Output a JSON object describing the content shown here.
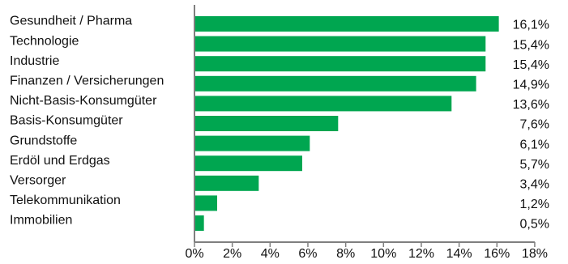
{
  "chart_data": {
    "type": "bar",
    "orientation": "horizontal",
    "categories": [
      "Gesundheit / Pharma",
      "Technologie",
      "Industrie",
      "Finanzen / Versicherungen",
      "Nicht-Basis-Konsumgüter",
      "Basis-Konsumgüter",
      "Grundstoffe",
      "Erdöl und Erdgas",
      "Versorger",
      "Telekommunikation",
      "Immobilien"
    ],
    "values": [
      16.1,
      15.4,
      15.4,
      14.9,
      13.6,
      7.6,
      6.1,
      5.7,
      3.4,
      1.2,
      0.5
    ],
    "value_labels": [
      "16,1%",
      "15,4%",
      "15,4%",
      "14,9%",
      "13,6%",
      "7,6%",
      "6,1%",
      "5,7%",
      "3,4%",
      "1,2%",
      "0,5%"
    ],
    "x_ticks": [
      0,
      2,
      4,
      6,
      8,
      10,
      12,
      14,
      16,
      18
    ],
    "x_tick_labels": [
      "0%",
      "2%",
      "4%",
      "6%",
      "8%",
      "10%",
      "12%",
      "14%",
      "16%",
      "18%"
    ],
    "xlim": [
      0,
      18
    ],
    "grid": false,
    "title": "",
    "xlabel": "",
    "ylabel": "",
    "colors": {
      "bar": "#00a650",
      "axis": "#7f7f7f",
      "text": "#111111"
    }
  }
}
